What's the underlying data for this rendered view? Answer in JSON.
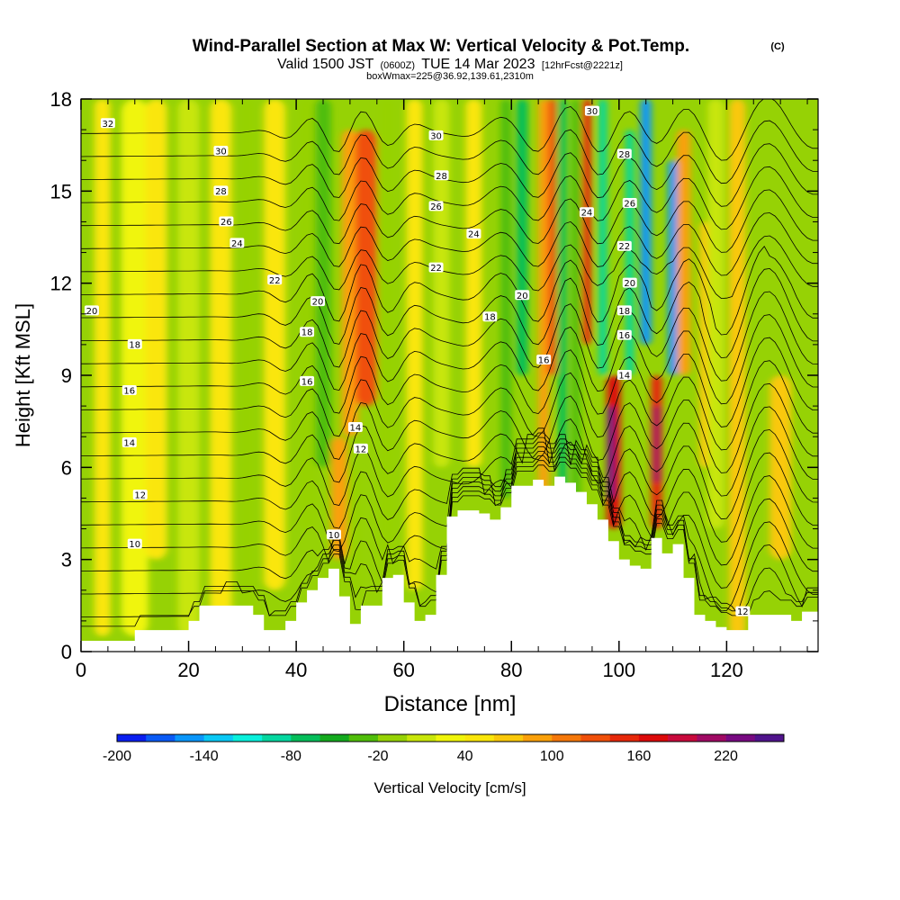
{
  "header": {
    "title": "Wind-Parallel Section at Max W: Vertical Velocity & Pot.Temp.",
    "copyright": "(C)",
    "valid_prefix": "Valid 1500 JST",
    "valid_z": "(0600Z)",
    "valid_date": "TUE 14 Mar 2023",
    "fcst": "[12hrFcst@2221z]",
    "box_info": "boxWmax=225@36.92,139.61,2310m"
  },
  "chart_data": {
    "type": "heatmap",
    "xlabel": "Distance [nm]",
    "ylabel": "Height [Kft MSL]",
    "xlim": [
      0,
      137
    ],
    "ylim": [
      0,
      18
    ],
    "x_ticks": [
      "0",
      "20",
      "40",
      "60",
      "80",
      "100",
      "120"
    ],
    "y_ticks": [
      "0",
      "3",
      "6",
      "9",
      "12",
      "15",
      "18"
    ],
    "colorbar": {
      "label": "Vertical Velocity [cm/s]",
      "tick_labels": [
        "-200",
        "-140",
        "-80",
        "-20",
        "40",
        "100",
        "160",
        "220"
      ],
      "colors": [
        "#0a1ef0",
        "#0a5af5",
        "#0a96fa",
        "#0ac8f5",
        "#0af0dc",
        "#05d7a0",
        "#05be5a",
        "#14aa1e",
        "#50be0a",
        "#96d205",
        "#c8e60a",
        "#f0f50a",
        "#fae60a",
        "#fac80a",
        "#faa00a",
        "#f5780a",
        "#f0500a",
        "#e6280a",
        "#dc0a0a",
        "#c80a3c",
        "#a00a64",
        "#780a82",
        "#50148c"
      ]
    },
    "velocity_features": [
      {
        "x": 4,
        "w": 3,
        "zbot": 0.5,
        "ztop": 18,
        "value": 30
      },
      {
        "x": 10,
        "w": 5,
        "zbot": 0.5,
        "ztop": 18,
        "value": 8
      },
      {
        "x": 14,
        "w": 4,
        "zbot": 3,
        "ztop": 18,
        "value": 25
      },
      {
        "x": 20,
        "w": 4,
        "zbot": 0.5,
        "ztop": 18,
        "value": -10
      },
      {
        "x": 26,
        "w": 4,
        "zbot": 1,
        "ztop": 18,
        "value": 30
      },
      {
        "x": 31,
        "w": 3,
        "zbot": 1,
        "ztop": 18,
        "value": -30
      },
      {
        "x": 36,
        "w": 4,
        "zbot": 2,
        "ztop": 18,
        "value": 30
      },
      {
        "x": 42,
        "w": 3,
        "zbot": 4,
        "ztop": 18,
        "value": -35
      },
      {
        "x": 45,
        "w": 3,
        "zbot": 6,
        "ztop": 18,
        "value": -60
      },
      {
        "x": 48,
        "w": 3,
        "zbot": 3,
        "ztop": 7,
        "value": 70
      },
      {
        "x": 50,
        "w": 3,
        "zbot": 7,
        "ztop": 17,
        "value": 60
      },
      {
        "x": 53,
        "w": 4,
        "zbot": 8,
        "ztop": 17,
        "value": 100
      },
      {
        "x": 51,
        "w": 2,
        "zbot": 2,
        "ztop": 6,
        "value": -35
      },
      {
        "x": 57,
        "w": 3,
        "zbot": 2,
        "ztop": 18,
        "value": -40
      },
      {
        "x": 62,
        "w": 3,
        "zbot": 2,
        "ztop": 18,
        "value": 35
      },
      {
        "x": 67,
        "w": 3,
        "zbot": 6,
        "ztop": 18,
        "value": -20
      },
      {
        "x": 73,
        "w": 3,
        "zbot": 6,
        "ztop": 18,
        "value": 30
      },
      {
        "x": 79,
        "w": 2,
        "zbot": 5,
        "ztop": 18,
        "value": -60
      },
      {
        "x": 82,
        "w": 2,
        "zbot": 9,
        "ztop": 18,
        "value": -90
      },
      {
        "x": 86,
        "w": 2,
        "zbot": 5,
        "ztop": 18,
        "value": 60
      },
      {
        "x": 87.5,
        "w": 1.5,
        "zbot": 9,
        "ztop": 18,
        "value": 110
      },
      {
        "x": 89.5,
        "w": 1.5,
        "zbot": 5,
        "ztop": 18,
        "value": -90
      },
      {
        "x": 92,
        "w": 1.6,
        "zbot": 5,
        "ztop": 18,
        "value": -60
      },
      {
        "x": 94,
        "w": 1.6,
        "zbot": 10,
        "ztop": 18,
        "value": 130
      },
      {
        "x": 97,
        "w": 1.5,
        "zbot": 9,
        "ztop": 18,
        "value": -110
      },
      {
        "x": 99,
        "w": 2.5,
        "zbot": 4,
        "ztop": 9,
        "value": 140
      },
      {
        "x": 98.5,
        "w": 1.2,
        "zbot": 5,
        "ztop": 8,
        "value": 220
      },
      {
        "x": 102,
        "w": 1.5,
        "zbot": 9,
        "ztop": 17,
        "value": -120
      },
      {
        "x": 105,
        "w": 2,
        "zbot": 10,
        "ztop": 18,
        "value": -170
      },
      {
        "x": 107,
        "w": 2,
        "zbot": 4,
        "ztop": 9,
        "value": 120
      },
      {
        "x": 107,
        "w": 1.2,
        "zbot": 5.5,
        "ztop": 8,
        "value": 190
      },
      {
        "x": 110,
        "w": 1.8,
        "zbot": 9,
        "ztop": 16,
        "value": -180
      },
      {
        "x": 112,
        "w": 2.5,
        "zbot": 9,
        "ztop": 17,
        "value": 60
      },
      {
        "x": 116,
        "w": 2,
        "zbot": 6,
        "ztop": 14,
        "value": 40
      },
      {
        "x": 118,
        "w": 3,
        "zbot": 4,
        "ztop": 18,
        "value": -20
      },
      {
        "x": 122,
        "w": 3,
        "zbot": 0.5,
        "ztop": 18,
        "value": 40
      },
      {
        "x": 130,
        "w": 4,
        "zbot": 3,
        "ztop": 9,
        "value": 45
      }
    ],
    "terrain": {
      "x": [
        0,
        5,
        10,
        15,
        20,
        22,
        25,
        28,
        30,
        32,
        34,
        36,
        38,
        40,
        42,
        44,
        46,
        48,
        50,
        52,
        54,
        56,
        58,
        60,
        62,
        64,
        66,
        68,
        70,
        72,
        74,
        76,
        78,
        80,
        82,
        84,
        86,
        88,
        90,
        92,
        94,
        96,
        98,
        100,
        102,
        104,
        106,
        108,
        110,
        112,
        114,
        116,
        118,
        120,
        122,
        124,
        126,
        128,
        130,
        132,
        134,
        137
      ],
      "z": [
        0.35,
        0.35,
        0.7,
        0.7,
        1.0,
        1.5,
        1.5,
        1.5,
        1.5,
        1.2,
        0.7,
        0.7,
        1.0,
        1.6,
        2.0,
        2.4,
        2.7,
        1.8,
        0.9,
        1.5,
        1.5,
        2.4,
        2.5,
        1.6,
        1.0,
        1.2,
        2.5,
        4.4,
        4.6,
        4.6,
        4.5,
        4.3,
        4.7,
        5.4,
        5.4,
        5.6,
        5.4,
        5.7,
        5.5,
        5.2,
        4.8,
        4.3,
        3.6,
        3.0,
        2.8,
        2.7,
        3.7,
        3.2,
        3.5,
        2.4,
        1.2,
        1.0,
        0.8,
        0.7,
        0.7,
        1.2,
        1.2,
        1.2,
        1.2,
        1.0,
        1.3,
        1.3
      ]
    },
    "theta_levels": [
      10,
      11,
      12,
      13,
      14,
      15,
      16,
      17,
      18,
      19,
      20,
      21,
      22,
      23,
      24,
      25,
      26,
      27,
      28,
      29,
      30,
      31,
      32
    ],
    "contour_labels": [
      {
        "x": 5,
        "z": 17.2,
        "text": "32"
      },
      {
        "x": 26,
        "z": 16.3,
        "text": "30"
      },
      {
        "x": 26,
        "z": 15.0,
        "text": "28"
      },
      {
        "x": 27,
        "z": 14.0,
        "text": "26"
      },
      {
        "x": 29,
        "z": 13.3,
        "text": "24"
      },
      {
        "x": 36,
        "z": 12.1,
        "text": "22"
      },
      {
        "x": 44,
        "z": 11.4,
        "text": "20"
      },
      {
        "x": 42,
        "z": 10.4,
        "text": "18"
      },
      {
        "x": 42,
        "z": 8.8,
        "text": "16"
      },
      {
        "x": 51,
        "z": 7.3,
        "text": "14"
      },
      {
        "x": 52,
        "z": 6.6,
        "text": "12"
      },
      {
        "x": 47,
        "z": 3.8,
        "text": "10"
      },
      {
        "x": 2,
        "z": 11.1,
        "text": "20"
      },
      {
        "x": 10,
        "z": 10.0,
        "text": "18"
      },
      {
        "x": 9,
        "z": 8.5,
        "text": "16"
      },
      {
        "x": 9,
        "z": 6.8,
        "text": "14"
      },
      {
        "x": 11,
        "z": 5.1,
        "text": "12"
      },
      {
        "x": 10,
        "z": 3.5,
        "text": "10"
      },
      {
        "x": 66,
        "z": 16.8,
        "text": "30"
      },
      {
        "x": 67,
        "z": 15.5,
        "text": "28"
      },
      {
        "x": 66,
        "z": 14.5,
        "text": "26"
      },
      {
        "x": 73,
        "z": 13.6,
        "text": "24"
      },
      {
        "x": 66,
        "z": 12.5,
        "text": "22"
      },
      {
        "x": 76,
        "z": 10.9,
        "text": "18"
      },
      {
        "x": 82,
        "z": 11.6,
        "text": "20"
      },
      {
        "x": 86,
        "z": 9.5,
        "text": "16"
      },
      {
        "x": 95,
        "z": 17.6,
        "text": "30"
      },
      {
        "x": 101,
        "z": 16.2,
        "text": "28"
      },
      {
        "x": 102,
        "z": 14.6,
        "text": "26"
      },
      {
        "x": 94,
        "z": 14.3,
        "text": "24"
      },
      {
        "x": 101,
        "z": 13.2,
        "text": "22"
      },
      {
        "x": 102,
        "z": 12.0,
        "text": "20"
      },
      {
        "x": 101,
        "z": 11.1,
        "text": "18"
      },
      {
        "x": 101,
        "z": 10.3,
        "text": "16"
      },
      {
        "x": 101,
        "z": 9.0,
        "text": "14"
      },
      {
        "x": 123,
        "z": 1.3,
        "text": "12"
      }
    ]
  }
}
